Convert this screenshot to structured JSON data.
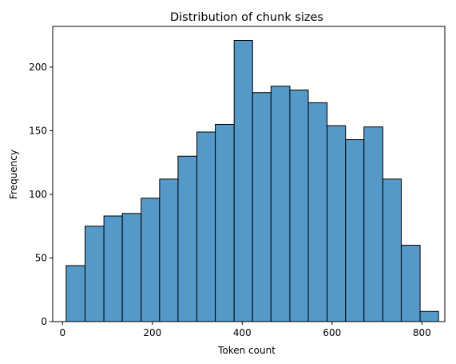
{
  "chart_data": {
    "type": "bar",
    "subtype": "histogram",
    "title": "Distribution of chunk sizes",
    "xlabel": "Token count",
    "ylabel": "Frequency",
    "xlim": [
      -22,
      851
    ],
    "ylim": [
      0,
      232
    ],
    "x_ticks": [
      0,
      200,
      400,
      600,
      800
    ],
    "y_ticks": [
      0,
      50,
      100,
      150,
      200
    ],
    "grid": false,
    "bar_color": "#5499C7",
    "edge_color": "#000000",
    "bins": [
      {
        "x0": 8,
        "x1": 50,
        "count": 44
      },
      {
        "x0": 50,
        "x1": 92,
        "count": 75
      },
      {
        "x0": 92,
        "x1": 133,
        "count": 83
      },
      {
        "x0": 133,
        "x1": 175,
        "count": 85
      },
      {
        "x0": 175,
        "x1": 216,
        "count": 97
      },
      {
        "x0": 216,
        "x1": 257,
        "count": 112
      },
      {
        "x0": 257,
        "x1": 299,
        "count": 130
      },
      {
        "x0": 299,
        "x1": 340,
        "count": 149
      },
      {
        "x0": 340,
        "x1": 382,
        "count": 155
      },
      {
        "x0": 382,
        "x1": 423,
        "count": 221
      },
      {
        "x0": 423,
        "x1": 464,
        "count": 180
      },
      {
        "x0": 464,
        "x1": 506,
        "count": 185
      },
      {
        "x0": 506,
        "x1": 547,
        "count": 182
      },
      {
        "x0": 547,
        "x1": 589,
        "count": 172
      },
      {
        "x0": 589,
        "x1": 630,
        "count": 154
      },
      {
        "x0": 630,
        "x1": 671,
        "count": 143
      },
      {
        "x0": 671,
        "x1": 713,
        "count": 153
      },
      {
        "x0": 713,
        "x1": 754,
        "count": 112
      },
      {
        "x0": 754,
        "x1": 796,
        "count": 60
      },
      {
        "x0": 796,
        "x1": 837,
        "count": 8
      }
    ]
  }
}
